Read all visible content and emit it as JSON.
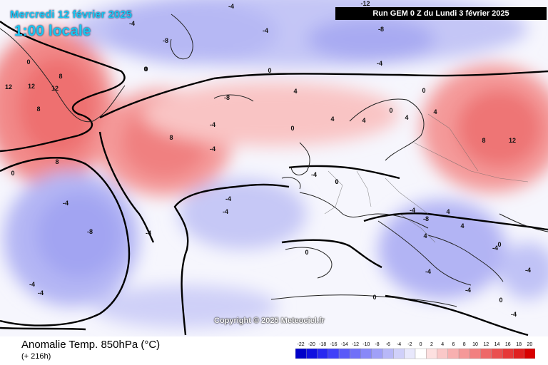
{
  "header": {
    "date": "Mercredi 12 février 2025",
    "time": "1:00 locale",
    "run": "Run GEM 0 Z du Lundi 3 février 2025"
  },
  "copyright": "Copyright © 2025 Meteociel.fr",
  "footer": {
    "title": "Anomalie Temp. 850hPa (°C)",
    "subtitle": "(+ 216h)"
  },
  "legend": {
    "ticks": [
      "-22",
      "-20",
      "-18",
      "-16",
      "-14",
      "-12",
      "-10",
      "-8",
      "-6",
      "-4",
      "-2",
      "0",
      "2",
      "4",
      "6",
      "8",
      "10",
      "12",
      "14",
      "16",
      "18",
      "20"
    ],
    "colors": [
      "#0000c8",
      "#1010e0",
      "#2828f0",
      "#4040f8",
      "#5a5af8",
      "#7070f8",
      "#8888f8",
      "#a0a0f8",
      "#b8b8f8",
      "#d0d0fa",
      "#e8e8fc",
      "#ffffff",
      "#fde0e0",
      "#fac8c8",
      "#f8b0b0",
      "#f59898",
      "#f28080",
      "#ee6868",
      "#ea5050",
      "#e63838",
      "#e02020",
      "#d80000"
    ]
  },
  "contour_labels": [
    "-12",
    "-8",
    "-4",
    "-4",
    "-4",
    "-4",
    "0",
    "0",
    "0",
    "4",
    "8",
    "8",
    "8",
    "12",
    "12",
    "12",
    "12",
    "8",
    "-8",
    "-4",
    "-4",
    "-8",
    "4",
    "8",
    "4",
    "0",
    "0",
    "0",
    "4",
    "4",
    "0",
    "-4",
    "-4",
    "-4",
    "-8",
    "-4",
    "-4",
    "-4",
    "-4",
    "0",
    "0",
    "0",
    "4",
    "4",
    "4",
    "0",
    "0",
    "-4",
    "-4",
    "-4",
    "-4",
    "-8",
    "-4",
    "-4",
    "0",
    "0"
  ]
}
